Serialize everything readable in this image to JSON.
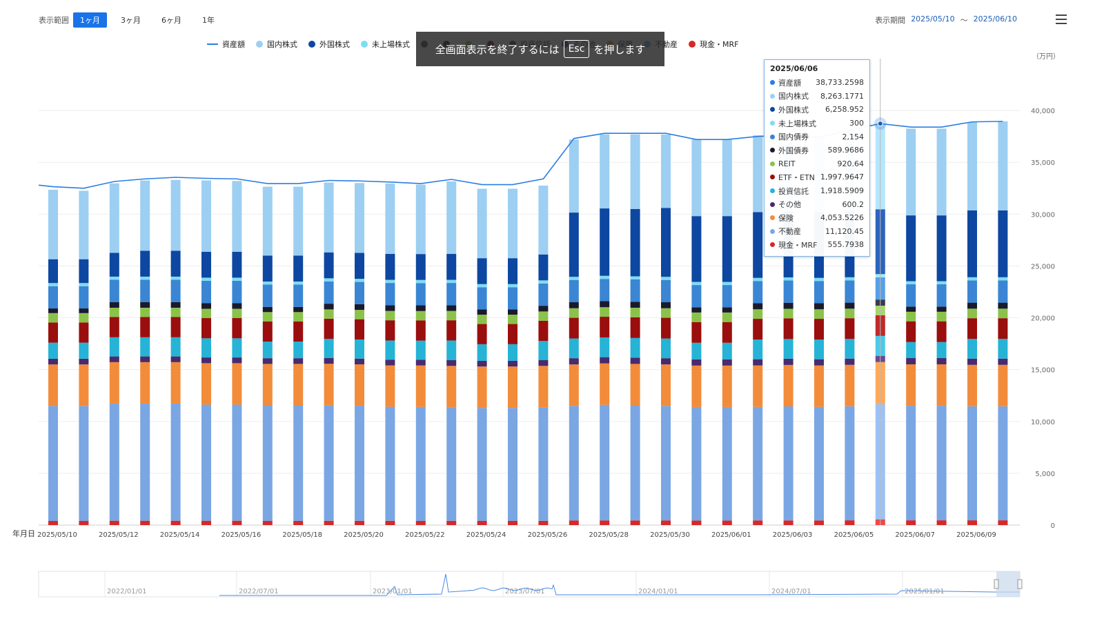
{
  "header": {
    "range_label": "表示範囲",
    "range_options": [
      "1ヶ月",
      "3ヶ月",
      "6ヶ月",
      "1年"
    ],
    "active_range": 0,
    "period_label": "表示期間",
    "period_start": "2025/05/10",
    "period_sep": "〜",
    "period_end": "2025/06/10"
  },
  "overlay": {
    "text_before": "全画面表示を終了するには",
    "key": "Esc",
    "text_after": "を押します"
  },
  "legend": [
    {
      "name": "資産額",
      "color": "#2a7de1",
      "kind": "line"
    },
    {
      "name": "国内株式",
      "color": "#9ccff2",
      "kind": "dot"
    },
    {
      "name": "外国株式",
      "color": "#0d47a1",
      "kind": "dot"
    },
    {
      "name": "未上場株式",
      "color": "#7fdcf5",
      "kind": "dot"
    },
    {
      "name": "",
      "color": "#34495e",
      "kind": "dot"
    },
    {
      "name": "",
      "color": "#1a1a2e",
      "kind": "dot"
    },
    {
      "name": "",
      "color": "#8bc34a",
      "kind": "dot"
    },
    {
      "name": "",
      "color": "#7b0c0c",
      "kind": "dot"
    },
    {
      "name": "投資信託",
      "color": "#263f52",
      "kind": "dot"
    },
    {
      "name": "その他",
      "color": "#4a2a6e",
      "kind": "dot"
    },
    {
      "name": "保険",
      "color": "#f28c3a",
      "kind": "dot"
    },
    {
      "name": "不動産",
      "color": "#7aa6e3",
      "kind": "dot"
    },
    {
      "name": "現金・MRF",
      "color": "#d62828",
      "kind": "dot"
    }
  ],
  "tooltip": {
    "date": "2025/06/06",
    "rows": [
      {
        "name": "資産額",
        "value": "38,733.2598",
        "color": "#2a7de1"
      },
      {
        "name": "国内株式",
        "value": "8,263.1771",
        "color": "#9ccff2"
      },
      {
        "name": "外国株式",
        "value": "6,258.952",
        "color": "#0d47a1"
      },
      {
        "name": "未上場株式",
        "value": "300",
        "color": "#7fdcf5"
      },
      {
        "name": "国内債券",
        "value": "2,154",
        "color": "#3a86d4"
      },
      {
        "name": "外国債券",
        "value": "589.9686",
        "color": "#1a1a2e"
      },
      {
        "name": "REIT",
        "value": "920.64",
        "color": "#8bc34a"
      },
      {
        "name": "ETF・ETN",
        "value": "1,997.9647",
        "color": "#9b0e0e"
      },
      {
        "name": "投資信託",
        "value": "1,918.5909",
        "color": "#26b3d6"
      },
      {
        "name": "その他",
        "value": "600.2",
        "color": "#4a2a6e"
      },
      {
        "name": "保険",
        "value": "4,053.5226",
        "color": "#f28c3a"
      },
      {
        "name": "不動産",
        "value": "11,120.45",
        "color": "#7aa6e3"
      },
      {
        "name": "現金・MRF",
        "value": "555.7938",
        "color": "#d62828"
      }
    ]
  },
  "navigator": {
    "labels": [
      "2022/01/01",
      "2022/07/01",
      "2023/01/01",
      "2023/07/01",
      "2024/01/01",
      "2024/07/01",
      "2025/01/01"
    ]
  },
  "chart_data": {
    "type": "bar",
    "stacked": true,
    "unit_label": "（万円）",
    "xlabel": "年月日",
    "ylim": [
      0,
      45000
    ],
    "yticks": [
      0,
      5000,
      10000,
      15000,
      20000,
      25000,
      30000,
      35000,
      40000
    ],
    "ytick_labels": [
      "0",
      "5,000",
      "10,000",
      "15,000",
      "20,000",
      "25,000",
      "30,000",
      "35,000",
      "40,000"
    ],
    "x": [
      "2025/05/10",
      "2025/05/11",
      "2025/05/12",
      "2025/05/13",
      "2025/05/14",
      "2025/05/15",
      "2025/05/16",
      "2025/05/17",
      "2025/05/18",
      "2025/05/19",
      "2025/05/20",
      "2025/05/21",
      "2025/05/22",
      "2025/05/23",
      "2025/05/24",
      "2025/05/25",
      "2025/05/26",
      "2025/05/27",
      "2025/05/28",
      "2025/05/29",
      "2025/05/30",
      "2025/05/31",
      "2025/06/01",
      "2025/06/02",
      "2025/06/03",
      "2025/06/04",
      "2025/06/05",
      "2025/06/06",
      "2025/06/07",
      "2025/06/08",
      "2025/06/09",
      "2025/06/10"
    ],
    "xtick_labels": [
      "2025/05/10",
      "2025/05/12",
      "2025/05/14",
      "2025/05/16",
      "2025/05/18",
      "2025/05/20",
      "2025/05/22",
      "2025/05/24",
      "2025/05/26",
      "2025/05/28",
      "2025/05/30",
      "2025/06/01",
      "2025/06/03",
      "2025/06/05",
      "2025/06/07",
      "2025/06/09"
    ],
    "highlight_index": 27,
    "line_series": {
      "name": "資産額",
      "values": [
        32650,
        32500,
        33150,
        33400,
        33550,
        33450,
        33400,
        32950,
        32950,
        33250,
        33200,
        33100,
        32950,
        33350,
        32850,
        32850,
        33400,
        37300,
        37800,
        37800,
        37800,
        37200,
        37200,
        37500,
        37600,
        37400,
        38100,
        38733,
        38400,
        38400,
        38900,
        38950
      ],
      "leading_value": 32800
    },
    "series": [
      {
        "name": "現金・MRF",
        "values": [
          400,
          400,
          420,
          420,
          420,
          420,
          420,
          400,
          400,
          410,
          410,
          410,
          400,
          410,
          400,
          400,
          410,
          450,
          450,
          450,
          450,
          440,
          440,
          450,
          450,
          450,
          460,
          556,
          460,
          460,
          460,
          460
        ]
      },
      {
        "name": "不動産",
        "values": [
          11100,
          11100,
          11300,
          11300,
          11300,
          11200,
          11200,
          11150,
          11150,
          11150,
          11100,
          11000,
          11000,
          10950,
          10900,
          10900,
          10950,
          11050,
          11150,
          11100,
          11050,
          10950,
          10950,
          10950,
          11000,
          10950,
          11000,
          11120,
          11050,
          11050,
          11000,
          11000
        ]
      },
      {
        "name": "保険",
        "values": [
          4000,
          4000,
          4000,
          4000,
          4000,
          4000,
          4000,
          4000,
          4000,
          4000,
          4000,
          4000,
          4000,
          4000,
          4000,
          4000,
          4000,
          4000,
          4000,
          4000,
          4000,
          4000,
          4000,
          4000,
          4000,
          4000,
          4000,
          4054,
          4000,
          4000,
          4000,
          4000
        ]
      },
      {
        "name": "その他",
        "values": [
          550,
          550,
          550,
          550,
          550,
          550,
          550,
          550,
          550,
          550,
          550,
          550,
          550,
          550,
          550,
          550,
          550,
          600,
          600,
          600,
          600,
          600,
          600,
          600,
          600,
          600,
          600,
          600,
          600,
          600,
          600,
          600
        ]
      },
      {
        "name": "投資信託",
        "values": [
          1550,
          1550,
          1850,
          1850,
          1850,
          1850,
          1850,
          1600,
          1600,
          1850,
          1850,
          1850,
          1850,
          1900,
          1600,
          1600,
          1850,
          1900,
          1900,
          1900,
          1900,
          1600,
          1600,
          1900,
          1900,
          1900,
          1900,
          1919,
          1550,
          1550,
          1900,
          1900
        ]
      },
      {
        "name": "ETF・ETN",
        "values": [
          1950,
          1950,
          1950,
          1950,
          1950,
          1950,
          1950,
          1950,
          1950,
          1950,
          1950,
          1950,
          1950,
          1950,
          1950,
          1950,
          1950,
          2000,
          2000,
          2000,
          2000,
          2000,
          2000,
          2000,
          2000,
          2000,
          2000,
          1998,
          2000,
          2000,
          2000,
          2000
        ]
      },
      {
        "name": "REIT",
        "values": [
          900,
          900,
          900,
          900,
          900,
          900,
          900,
          900,
          900,
          900,
          900,
          900,
          900,
          900,
          900,
          900,
          900,
          920,
          920,
          920,
          920,
          920,
          920,
          920,
          920,
          920,
          920,
          921,
          920,
          920,
          920,
          920
        ]
      },
      {
        "name": "外国債券",
        "values": [
          450,
          450,
          550,
          550,
          550,
          550,
          550,
          500,
          500,
          550,
          550,
          550,
          550,
          550,
          500,
          500,
          550,
          580,
          580,
          580,
          580,
          500,
          500,
          580,
          580,
          580,
          580,
          590,
          500,
          500,
          580,
          580
        ]
      },
      {
        "name": "国内債券",
        "values": [
          2150,
          2150,
          2150,
          2150,
          2150,
          2150,
          2150,
          2150,
          2150,
          2150,
          2150,
          2150,
          2150,
          2150,
          2150,
          2150,
          2150,
          2150,
          2150,
          2150,
          2150,
          2150,
          2150,
          2150,
          2150,
          2150,
          2150,
          2154,
          2150,
          2150,
          2150,
          2150
        ]
      },
      {
        "name": "未上場株式",
        "values": [
          300,
          300,
          300,
          300,
          300,
          300,
          300,
          300,
          300,
          300,
          300,
          300,
          300,
          300,
          300,
          300,
          300,
          300,
          300,
          300,
          300,
          300,
          300,
          300,
          300,
          300,
          300,
          300,
          300,
          300,
          300,
          300
        ]
      },
      {
        "name": "外国株式",
        "values": [
          2300,
          2300,
          2300,
          2500,
          2500,
          2500,
          2500,
          2500,
          2500,
          2500,
          2500,
          2500,
          2500,
          2500,
          2500,
          2500,
          2500,
          6200,
          6500,
          6500,
          6650,
          6350,
          6350,
          6350,
          6350,
          6350,
          6350,
          6259,
          6350,
          6350,
          6450,
          6450
        ]
      },
      {
        "name": "国内株式",
        "values": [
          6700,
          6600,
          6700,
          6780,
          6830,
          6880,
          6830,
          6650,
          6650,
          6740,
          6740,
          6790,
          6700,
          6990,
          6700,
          6700,
          6640,
          7050,
          7150,
          7200,
          7080,
          7390,
          7390,
          7400,
          7470,
          7300,
          7890,
          8263,
          8370,
          8370,
          8520,
          8590
        ]
      }
    ]
  }
}
